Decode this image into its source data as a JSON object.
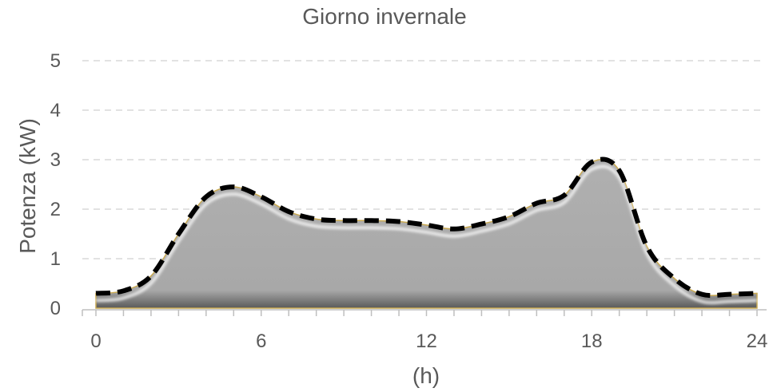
{
  "chart_data": {
    "type": "area",
    "title": "Giorno invernale",
    "xlabel": "(h)",
    "ylabel": "Potenza (kW)",
    "xlim": [
      0,
      24
    ],
    "ylim": [
      0,
      5
    ],
    "x_ticks": [
      "0",
      "6",
      "12",
      "18",
      "24"
    ],
    "y_ticks": [
      "0",
      "1",
      "2",
      "3",
      "4",
      "5"
    ],
    "grid": true,
    "legend": "none",
    "fill_color": "#a6a6a6",
    "line_color": "#000000",
    "series": [
      {
        "x": [
          0,
          1,
          2,
          3,
          4,
          5,
          6,
          7,
          8,
          9,
          10,
          11,
          12,
          13,
          14,
          15,
          16,
          17,
          18,
          19,
          20,
          21,
          22,
          23,
          24
        ],
        "values": [
          0.3,
          0.35,
          0.65,
          1.5,
          2.25,
          2.45,
          2.25,
          1.95,
          1.8,
          1.77,
          1.77,
          1.75,
          1.68,
          1.6,
          1.7,
          1.85,
          2.12,
          2.28,
          2.95,
          2.78,
          1.25,
          0.6,
          0.28,
          0.28,
          0.3
        ]
      }
    ]
  }
}
